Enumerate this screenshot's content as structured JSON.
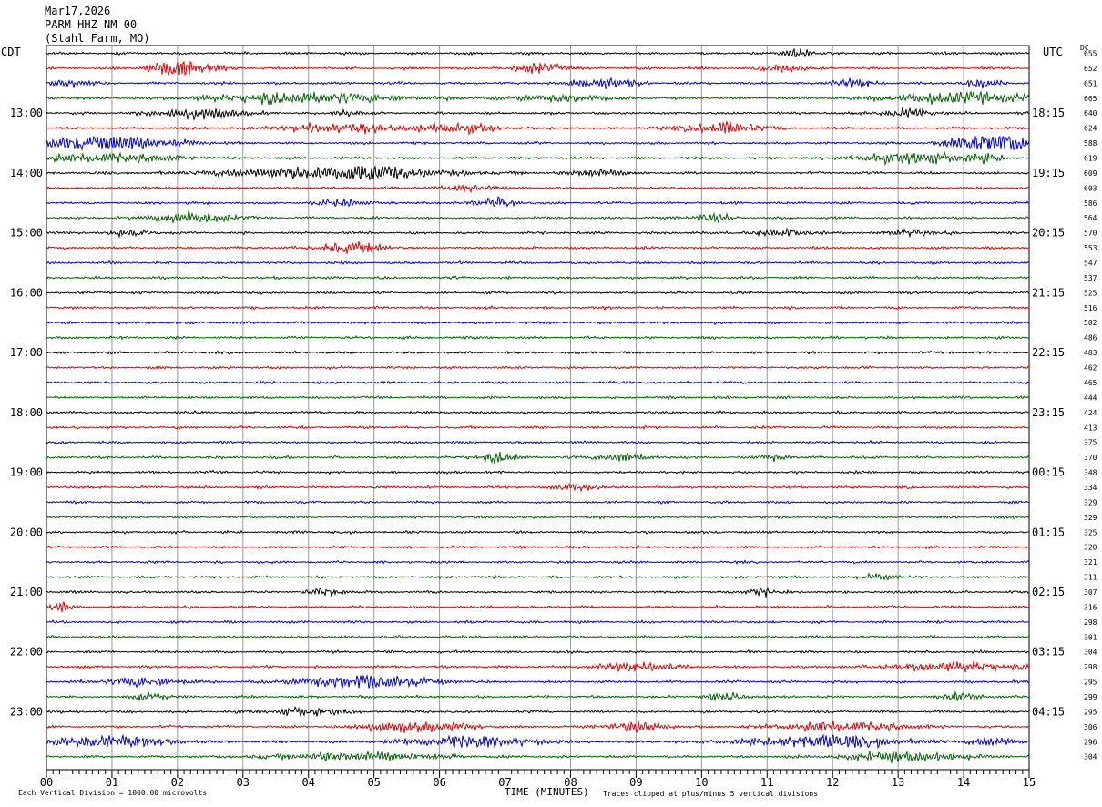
{
  "header": {
    "date": "Mar17,2026",
    "station": "PARM HHZ NM 00",
    "location": "(Stahl Farm, MO)"
  },
  "left_zone_label": "CDT",
  "right_zone_label": "UTC",
  "dc_label": "DC",
  "footer": {
    "scale_note": "Each Vertical Division = 1000.00 microvolts",
    "axis_title": "TIME (MINUTES)",
    "clip_note": "Traces clipped at plus/minus 5 vertical divisions"
  },
  "colors": {
    "trace_cycle": [
      "#000000",
      "#e00000",
      "#0000d0",
      "#006000"
    ],
    "grid": "#9a9a9a",
    "background": "#ffffff"
  },
  "chart_data": {
    "type": "line",
    "title": "PARM HHZ NM 00",
    "x_ticks": [
      "00",
      "01",
      "02",
      "03",
      "04",
      "05",
      "06",
      "07",
      "08",
      "09",
      "10",
      "11",
      "12",
      "13",
      "14",
      "15"
    ],
    "xlim": [
      0,
      15
    ],
    "left_time_labels": [
      "13:00",
      "14:00",
      "15:00",
      "16:00",
      "17:00",
      "18:00",
      "19:00",
      "20:00",
      "21:00",
      "22:00",
      "23:00"
    ],
    "right_time_labels": [
      "18:15",
      "19:15",
      "20:15",
      "21:15",
      "22:15",
      "23:15",
      "00:15",
      "01:15",
      "02:15",
      "03:15",
      "04:15"
    ],
    "dc_offsets": [
      655,
      652,
      651,
      665,
      640,
      624,
      588,
      619,
      609,
      603,
      586,
      564,
      570,
      553,
      547,
      537,
      525,
      516,
      502,
      486,
      483,
      462,
      465,
      444,
      424,
      413,
      375,
      370,
      348,
      334,
      329,
      329,
      325,
      320,
      321,
      311,
      307,
      316,
      298,
      301,
      304,
      298,
      295,
      299,
      295,
      306,
      296,
      304
    ],
    "trace_activity": [
      [
        [
          11.5,
          2.2,
          0.2
        ]
      ],
      [
        [
          2.2,
          3.0,
          0.4
        ],
        [
          1.8,
          1.5,
          0.3
        ],
        [
          7.5,
          1.8,
          0.4
        ],
        [
          11.2,
          1.8,
          0.3
        ]
      ],
      [
        [
          0.4,
          1.6,
          0.3
        ],
        [
          8.5,
          1.8,
          0.5
        ],
        [
          12.3,
          1.6,
          0.3
        ],
        [
          14.3,
          1.4,
          0.3
        ]
      ],
      [
        [
          4.0,
          2.0,
          1.5
        ],
        [
          7.8,
          1.2,
          0.8
        ],
        [
          14.0,
          2.0,
          1.2
        ]
      ],
      [
        [
          2.3,
          2.2,
          0.6
        ],
        [
          4.6,
          1.6,
          0.2
        ],
        [
          13.1,
          1.6,
          0.4
        ]
      ],
      [
        [
          4.6,
          1.6,
          1.0
        ],
        [
          6.3,
          1.6,
          0.6
        ],
        [
          10.3,
          2.2,
          0.6
        ]
      ],
      [
        [
          1.0,
          3.0,
          1.0
        ],
        [
          14.4,
          4.0,
          0.6
        ],
        [
          14.6,
          2.5,
          0.3
        ]
      ],
      [
        [
          1.0,
          2.0,
          1.0
        ],
        [
          13.2,
          2.2,
          0.8
        ],
        [
          14.3,
          1.4,
          0.3
        ]
      ],
      [
        [
          4.4,
          2.4,
          1.6
        ],
        [
          5.0,
          2.2,
          0.4
        ],
        [
          8.4,
          1.4,
          0.4
        ]
      ],
      [
        [
          6.5,
          1.1,
          0.4
        ]
      ],
      [
        [
          4.5,
          1.6,
          0.3
        ],
        [
          6.8,
          2.0,
          0.3
        ]
      ],
      [
        [
          2.2,
          2.2,
          0.6
        ],
        [
          10.2,
          1.5,
          0.3
        ]
      ],
      [
        [
          1.3,
          1.4,
          0.3
        ],
        [
          11.2,
          1.5,
          0.4
        ],
        [
          13.2,
          1.3,
          0.3
        ]
      ],
      [
        [
          4.5,
          1.6,
          0.4
        ],
        [
          5.0,
          1.8,
          0.2
        ]
      ],
      [],
      [],
      [],
      [],
      [],
      [],
      [],
      [],
      [],
      [],
      [],
      [],
      [],
      [
        [
          6.9,
          1.8,
          0.3
        ],
        [
          8.8,
          1.8,
          0.4
        ],
        [
          11.1,
          1.3,
          0.2
        ]
      ],
      [],
      [
        [
          8.1,
          1.3,
          0.3
        ]
      ],
      [],
      [],
      [],
      [],
      [],
      [
        [
          12.7,
          1.2,
          0.2
        ]
      ],
      [
        [
          4.3,
          1.4,
          0.3
        ],
        [
          10.9,
          1.4,
          0.2
        ]
      ],
      [
        [
          0.2,
          1.4,
          0.2
        ]
      ],
      [],
      [],
      [],
      [
        [
          9.0,
          1.5,
          0.6
        ],
        [
          13.8,
          1.6,
          1.0
        ]
      ],
      [
        [
          1.5,
          1.6,
          0.6
        ],
        [
          4.8,
          2.6,
          1.0
        ]
      ],
      [
        [
          1.6,
          1.6,
          0.3
        ],
        [
          10.4,
          1.4,
          0.3
        ],
        [
          14.0,
          1.4,
          0.3
        ]
      ],
      [
        [
          4.0,
          1.4,
          0.6
        ]
      ],
      [
        [
          5.6,
          2.0,
          0.8
        ],
        [
          9.0,
          1.6,
          0.5
        ],
        [
          12.2,
          2.0,
          1.0
        ]
      ],
      [
        [
          1.0,
          2.0,
          1.0
        ],
        [
          6.5,
          2.0,
          1.0
        ],
        [
          11.9,
          2.4,
          1.2
        ],
        [
          14.5,
          1.4,
          0.4
        ]
      ],
      [
        [
          4.8,
          1.6,
          1.2
        ],
        [
          13.0,
          1.6,
          1.0
        ]
      ]
    ],
    "xlabel": "TIME (MINUTES)",
    "ylabel": ""
  }
}
